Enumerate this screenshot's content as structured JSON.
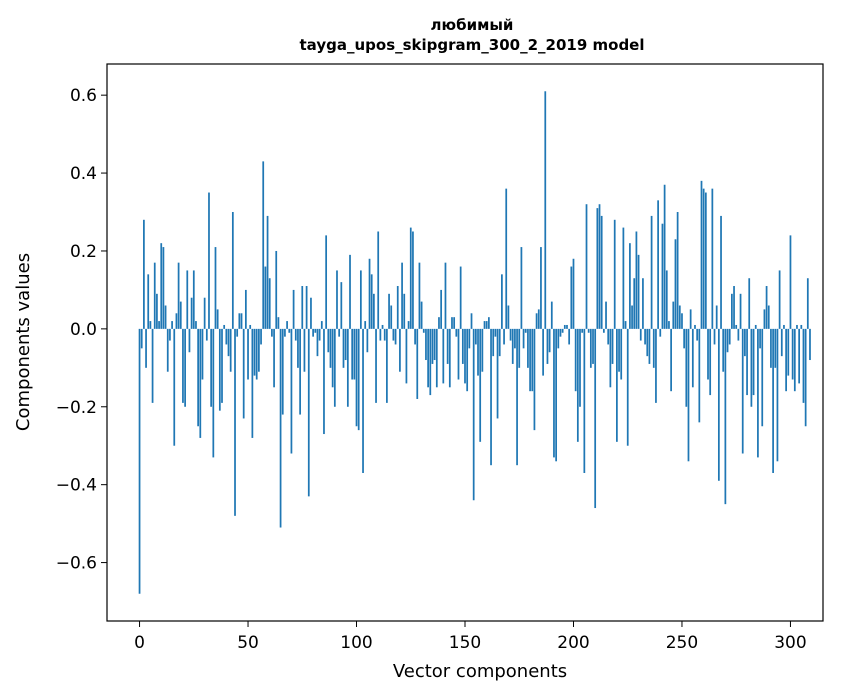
{
  "chart_data": {
    "type": "bar",
    "title_line1": "любимый",
    "title_line2": "tayga_upos_skipgram_300_2_2019 model",
    "xlabel": "Vector components",
    "ylabel": "Components values",
    "xlim": [
      -15,
      315
    ],
    "ylim": [
      -0.75,
      0.68
    ],
    "x_ticks": [
      0,
      50,
      100,
      150,
      200,
      250,
      300
    ],
    "x_tick_labels": [
      "0",
      "50",
      "100",
      "150",
      "200",
      "250",
      "300"
    ],
    "y_ticks": [
      -0.6,
      -0.4,
      -0.2,
      0.0,
      0.2,
      0.4,
      0.6
    ],
    "y_tick_labels": [
      "−0.6",
      "−0.4",
      "−0.2",
      "0.0",
      "0.2",
      "0.4",
      "0.6"
    ],
    "bar_color": "#1f77b4",
    "grid": false,
    "values": [
      -0.68,
      -0.05,
      0.28,
      -0.1,
      0.14,
      0.02,
      -0.19,
      0.17,
      0.09,
      0.02,
      0.22,
      0.21,
      0.06,
      -0.11,
      -0.03,
      0.02,
      -0.3,
      0.04,
      0.17,
      0.07,
      -0.19,
      -0.2,
      0.15,
      -0.06,
      0.08,
      0.15,
      0.02,
      -0.25,
      -0.28,
      -0.13,
      0.08,
      -0.03,
      0.35,
      -0.2,
      -0.33,
      0.21,
      0.05,
      -0.21,
      -0.19,
      0.01,
      -0.04,
      -0.07,
      -0.11,
      0.3,
      -0.48,
      -0.02,
      0.04,
      0.04,
      -0.23,
      0.1,
      -0.13,
      0.01,
      -0.28,
      -0.12,
      -0.13,
      -0.11,
      -0.04,
      0.43,
      0.16,
      0.29,
      0.13,
      -0.02,
      -0.15,
      0.2,
      0.03,
      -0.51,
      -0.22,
      -0.02,
      0.02,
      -0.01,
      -0.32,
      0.1,
      -0.03,
      -0.1,
      -0.22,
      0.11,
      -0.11,
      0.11,
      -0.43,
      0.08,
      -0.02,
      -0.01,
      -0.07,
      -0.03,
      0.02,
      -0.27,
      0.24,
      -0.06,
      -0.1,
      -0.15,
      -0.2,
      0.15,
      -0.02,
      0.12,
      -0.1,
      -0.08,
      -0.2,
      0.19,
      -0.13,
      -0.13,
      -0.25,
      -0.26,
      0.15,
      -0.37,
      0.02,
      -0.06,
      0.18,
      0.14,
      0.09,
      -0.19,
      0.25,
      -0.03,
      0.01,
      -0.03,
      -0.19,
      0.09,
      0.06,
      -0.03,
      -0.04,
      0.11,
      -0.11,
      0.17,
      0.09,
      -0.14,
      0.02,
      0.26,
      0.25,
      -0.04,
      -0.18,
      0.17,
      0.07,
      -0.01,
      -0.08,
      -0.15,
      -0.17,
      -0.09,
      -0.08,
      -0.15,
      0.03,
      0.1,
      -0.14,
      0.17,
      -0.09,
      -0.15,
      0.03,
      0.03,
      -0.02,
      -0.13,
      0.16,
      -0.09,
      -0.14,
      -0.16,
      -0.05,
      0.04,
      -0.44,
      -0.04,
      -0.12,
      -0.29,
      -0.11,
      0.02,
      0.02,
      0.03,
      -0.35,
      -0.07,
      -0.02,
      -0.23,
      -0.07,
      0.14,
      -0.04,
      0.36,
      0.06,
      -0.03,
      -0.09,
      -0.05,
      -0.35,
      -0.1,
      0.21,
      -0.05,
      -0.01,
      -0.1,
      -0.16,
      -0.16,
      -0.26,
      0.04,
      0.05,
      0.21,
      -0.12,
      0.61,
      -0.09,
      -0.06,
      0.07,
      -0.33,
      -0.34,
      -0.05,
      -0.02,
      -0.01,
      0.01,
      0.01,
      -0.04,
      0.16,
      0.18,
      -0.16,
      -0.29,
      -0.2,
      -0.01,
      -0.37,
      0.32,
      -0.01,
      -0.1,
      -0.09,
      -0.46,
      0.31,
      0.32,
      0.29,
      -0.01,
      0.07,
      -0.04,
      -0.15,
      -0.09,
      0.28,
      -0.29,
      -0.11,
      -0.13,
      0.26,
      0.02,
      -0.3,
      0.22,
      0.06,
      0.13,
      0.25,
      0.19,
      -0.03,
      0.13,
      -0.04,
      -0.07,
      -0.09,
      0.29,
      -0.1,
      -0.19,
      0.33,
      -0.02,
      0.27,
      0.37,
      0.15,
      0.02,
      -0.16,
      0.07,
      0.23,
      0.3,
      0.06,
      0.04,
      -0.05,
      -0.2,
      -0.34,
      0.05,
      -0.15,
      0.01,
      -0.03,
      -0.24,
      0.38,
      0.36,
      0.35,
      -0.13,
      -0.17,
      0.36,
      -0.04,
      0.06,
      -0.39,
      0.29,
      -0.11,
      -0.45,
      -0.06,
      -0.04,
      0.09,
      0.11,
      0.01,
      -0.03,
      0.09,
      -0.32,
      -0.07,
      -0.17,
      0.13,
      -0.2,
      -0.17,
      0.01,
      -0.33,
      -0.05,
      -0.25,
      0.05,
      0.11,
      0.06,
      -0.1,
      -0.37,
      -0.1,
      -0.34,
      0.15,
      -0.07,
      0.01,
      -0.16,
      -0.12,
      0.24,
      -0.13,
      -0.16,
      0.01,
      -0.14,
      0.01,
      -0.19,
      -0.25,
      0.13,
      -0.08
    ]
  }
}
